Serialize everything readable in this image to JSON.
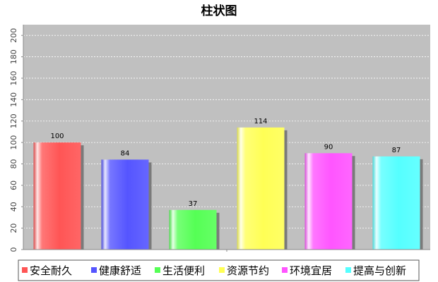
{
  "chart_data": {
    "type": "bar",
    "title": "柱状图",
    "categories": [
      "安全耐久",
      "健康舒适",
      "生活便利",
      "资源节约",
      "环境宜居",
      "提高与创新"
    ],
    "values": [
      100,
      84,
      37,
      114,
      90,
      87
    ],
    "colors": [
      "#ff5555",
      "#5555ff",
      "#55ff55",
      "#ffff55",
      "#ff55ff",
      "#55ffff"
    ],
    "ylim": [
      0,
      210
    ],
    "yticks": [
      0,
      20,
      40,
      60,
      80,
      100,
      120,
      140,
      160,
      180,
      200
    ],
    "xlabel": "",
    "ylabel": "",
    "grid": true,
    "legend_position": "bottom",
    "plot_background": "#c0c0c0"
  }
}
